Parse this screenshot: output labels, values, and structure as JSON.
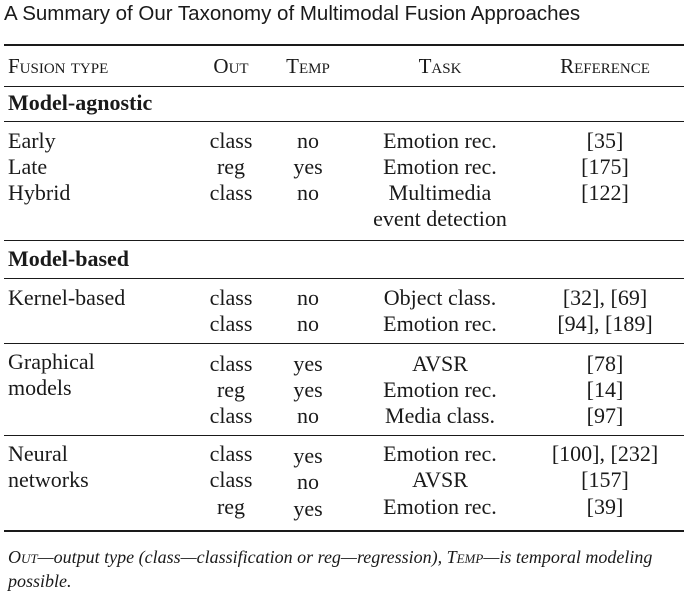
{
  "caption": "A Summary of Our Taxonomy of Multimodal Fusion Approaches",
  "headers": {
    "type": "Fusion type",
    "out": "Out",
    "temp": "Temp",
    "task": "Task",
    "ref": "Reference"
  },
  "sections": [
    {
      "title": "Model-agnostic",
      "groups": [
        {
          "type_lines": [
            "Early"
          ],
          "rows": [
            {
              "out": "class",
              "temp": "no",
              "task": "Emotion rec.",
              "ref": "[35]"
            }
          ]
        },
        {
          "type_lines": [
            "Late"
          ],
          "rows": [
            {
              "out": "reg",
              "temp": "yes",
              "task": "Emotion rec.",
              "ref": "[175]"
            }
          ]
        },
        {
          "type_lines": [
            "Hybrid"
          ],
          "rows": [
            {
              "out": "class",
              "temp": "no",
              "task": "Multimedia",
              "task2": "event detection",
              "ref": "[122]"
            }
          ]
        }
      ]
    },
    {
      "title": "Model-based",
      "groups": [
        {
          "type_lines": [
            "Kernel-based"
          ],
          "rows": [
            {
              "out": "class",
              "temp": "no",
              "task": "Object class.",
              "ref": "[32], [69]"
            },
            {
              "out": "class",
              "temp": "no",
              "task": "Emotion rec.",
              "ref": "[94], [189]"
            }
          ]
        },
        {
          "type_lines": [
            "Graphical",
            "models"
          ],
          "rows": [
            {
              "out": "class",
              "temp": "yes",
              "task": "AVSR",
              "ref": "[78]"
            },
            {
              "out": "reg",
              "temp": "yes",
              "task": "Emotion rec.",
              "ref": "[14]"
            },
            {
              "out": "class",
              "temp": "no",
              "task": "Media class.",
              "ref": "[97]"
            }
          ]
        },
        {
          "type_lines": [
            "Neural",
            "networks"
          ],
          "rows": [
            {
              "out": "class",
              "temp": "yes",
              "task": "Emotion rec.",
              "ref": "[100], [232]"
            },
            {
              "out": "class",
              "temp": "no",
              "task": "AVSR",
              "ref": "[157]"
            },
            {
              "out": "reg",
              "temp": "yes",
              "task": "Emotion rec.",
              "ref": "[39]"
            }
          ]
        }
      ]
    }
  ],
  "footnote": {
    "out_term": "Out",
    "out_text": "—output type (class—classification or reg—regression), ",
    "temp_term": "Temp",
    "temp_text": "—is temporal modeling possible."
  }
}
